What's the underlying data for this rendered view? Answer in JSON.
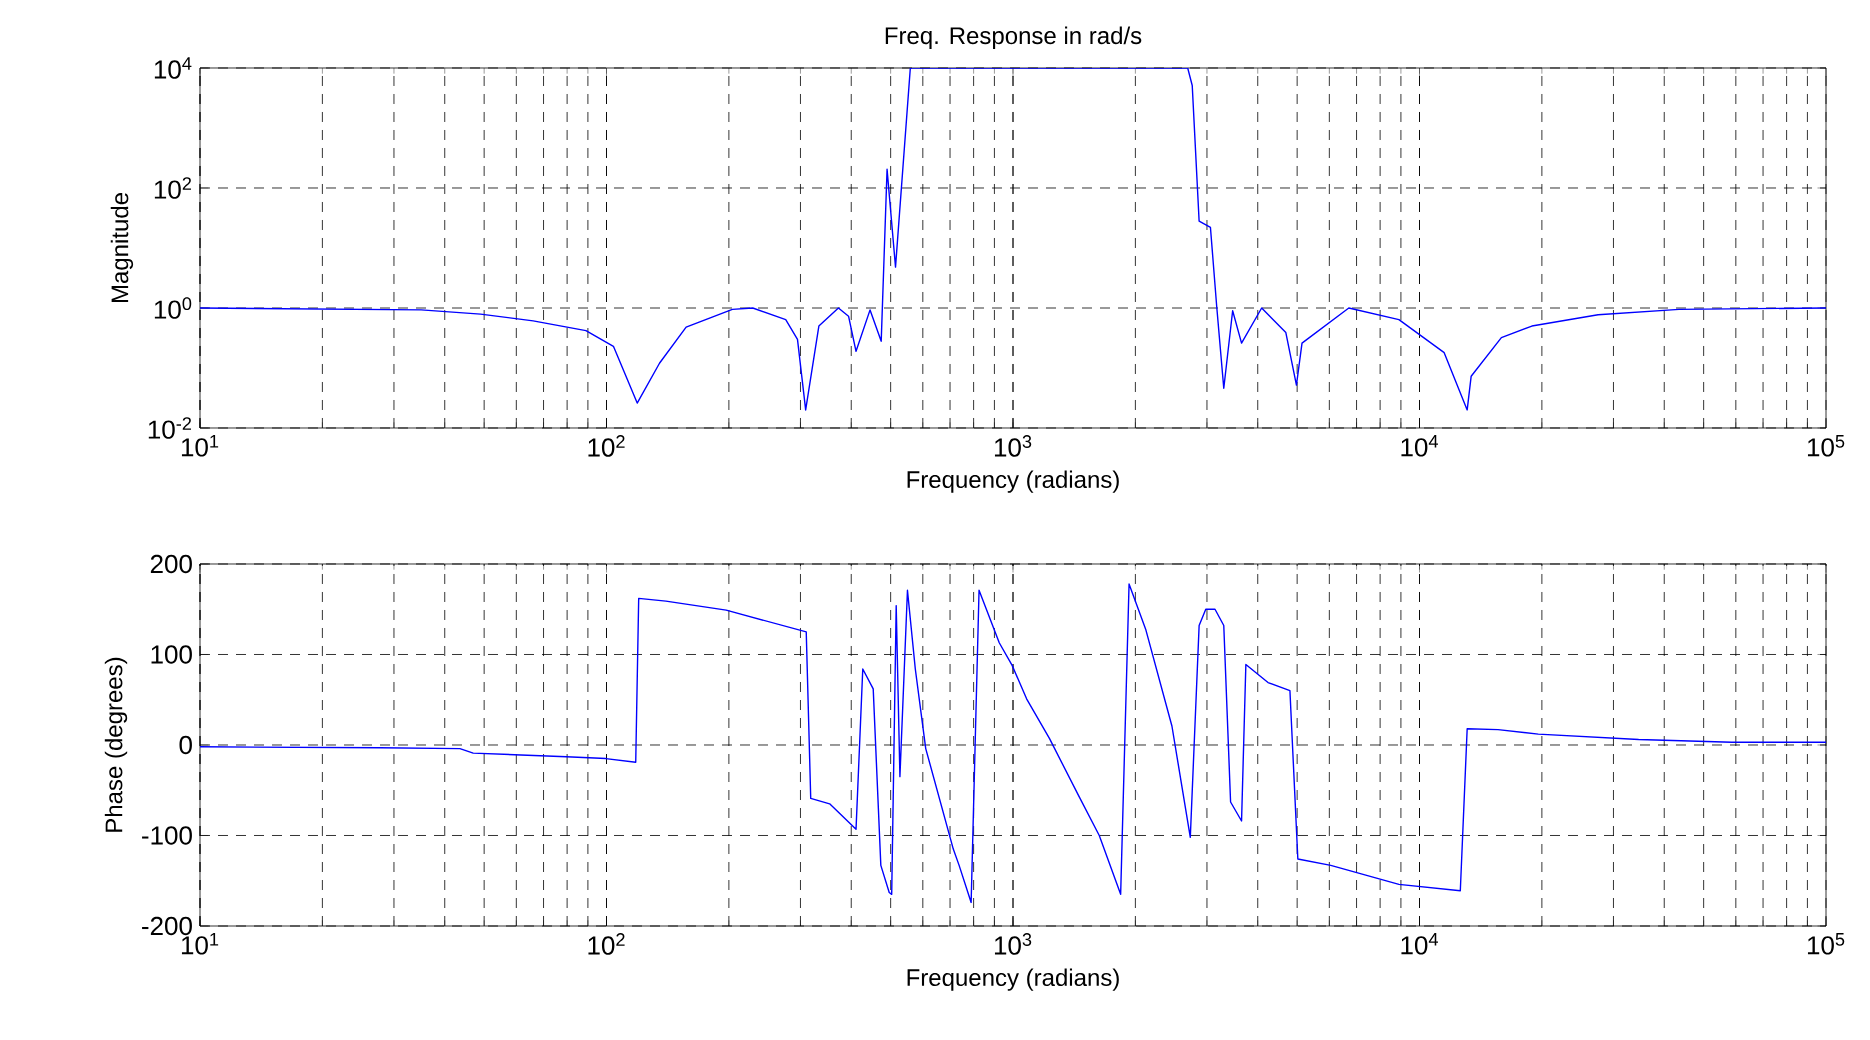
{
  "chart_data": [
    {
      "type": "line",
      "title": "Freq. Response in rad/s",
      "xlabel": "Frequency (radians)",
      "ylabel": "Magnitude",
      "log": "xy",
      "grid": true,
      "color": "#0000ff",
      "xlim": [
        10,
        100000
      ],
      "ylim": [
        0.01,
        10000
      ],
      "xticks": [
        {
          "value": 10,
          "label": "10$^{1}$"
        },
        {
          "value": 100,
          "label": "10$^{2}$"
        },
        {
          "value": 1000,
          "label": "10$^{3}$"
        },
        {
          "value": 10000,
          "label": "10$^{4}$"
        },
        {
          "value": 100000,
          "label": "10$^{5}$"
        }
      ],
      "yticks": [
        {
          "value": 0.01,
          "label": "10$^{-2}$"
        },
        {
          "value": 1,
          "label": "10$^{0}$"
        },
        {
          "value": 100,
          "label": "10$^{2}$"
        },
        {
          "value": 10000,
          "label": "10$^{4}$"
        }
      ],
      "x": [
        10,
        35,
        49,
        66,
        89,
        104,
        119,
        135,
        157,
        204,
        229,
        276,
        295,
        309,
        333,
        372,
        394,
        411,
        445,
        474,
        490,
        514,
        559,
        2690,
        2760,
        2870,
        3060,
        3170,
        3300,
        3470,
        3650,
        4090,
        4690,
        4980,
        5140,
        6700,
        8900,
        11500,
        13100,
        13400,
        15900,
        18900,
        27500,
        43500,
        100000
      ],
      "values": [
        1.0,
        0.93,
        0.79,
        0.61,
        0.42,
        0.23,
        0.026,
        0.12,
        0.48,
        0.95,
        1.0,
        0.64,
        0.3,
        0.02,
        0.5,
        1.0,
        0.73,
        0.19,
        0.93,
        0.28,
        205,
        4.8,
        10000,
        10000,
        5100,
        28,
        22,
        1.07,
        0.046,
        0.9,
        0.26,
        1.0,
        0.39,
        0.052,
        0.26,
        1.0,
        0.64,
        0.18,
        0.02,
        0.073,
        0.32,
        0.5,
        0.77,
        0.95,
        1.0
      ]
    },
    {
      "type": "line",
      "xlabel": "Frequency (radians)",
      "ylabel": "Phase (degrees)",
      "log": "x",
      "grid": true,
      "color": "#0000ff",
      "xlim": [
        10,
        100000
      ],
      "ylim": [
        -200,
        200
      ],
      "xticks": [
        {
          "value": 10,
          "label": "10$^{1}$"
        },
        {
          "value": 100,
          "label": "10$^{2}$"
        },
        {
          "value": 1000,
          "label": "10$^{3}$"
        },
        {
          "value": 10000,
          "label": "10$^{4}$"
        },
        {
          "value": 100000,
          "label": "10$^{5}$"
        }
      ],
      "yticks": [
        -200,
        -100,
        0,
        100,
        200
      ],
      "x": [
        10,
        27.7,
        43.6,
        47,
        79.7,
        99.6,
        118,
        120,
        140,
        197,
        310,
        318,
        354,
        411,
        427,
        453,
        473,
        496,
        503,
        516,
        527,
        550,
        575,
        610,
        713,
        737,
        789,
        825,
        925,
        995,
        1080,
        1230,
        1450,
        1630,
        1840,
        1930,
        2120,
        2460,
        2730,
        2870,
        2980,
        3140,
        3300,
        3430,
        3650,
        3740,
        4240,
        4800,
        5020,
        6050,
        8900,
        12600,
        13100,
        15600,
        19600,
        34600,
        58700,
        100000
      ],
      "values": [
        -2,
        -3,
        -4,
        -9,
        -13,
        -15,
        -19,
        162,
        159,
        149,
        125,
        -59,
        -65,
        -93,
        84,
        62,
        -133,
        -163,
        -165,
        154,
        -35,
        171,
        84,
        -4,
        -115,
        -133,
        -174,
        171,
        113,
        88,
        51,
        7,
        -56,
        -100,
        -165,
        178,
        128,
        21,
        -102,
        132,
        150,
        150,
        132,
        -63,
        -84,
        89,
        69,
        60,
        -126,
        -133,
        -154,
        -161,
        18,
        17,
        12,
        6,
        3,
        3
      ]
    }
  ]
}
